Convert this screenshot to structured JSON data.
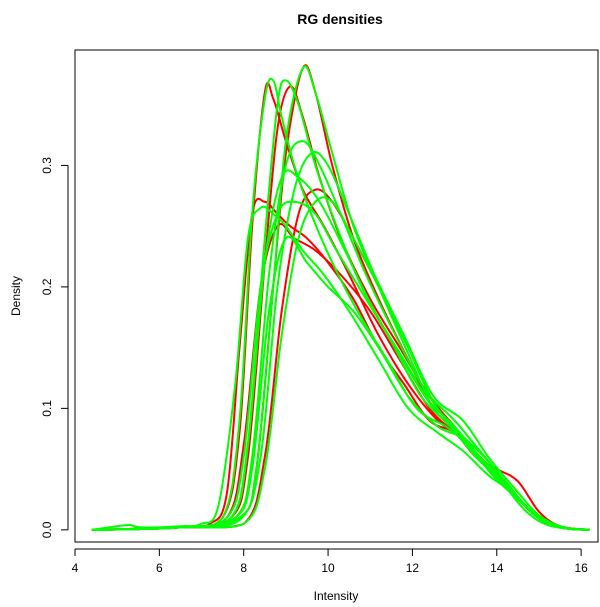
{
  "chart_data": {
    "type": "line",
    "title": "RG densities",
    "xlabel": "Intensity",
    "ylabel": "Density",
    "xlim": [
      4,
      16.4
    ],
    "ylim": [
      -0.01,
      0.395
    ],
    "xticks": [
      4,
      6,
      8,
      10,
      12,
      14,
      16
    ],
    "yticks": [
      0.0,
      0.1,
      0.2,
      0.3
    ],
    "ytick_labels": [
      "0.0",
      "0.1",
      "0.2",
      "0.3"
    ],
    "grid": false,
    "legend": "none",
    "colors": {
      "red_channel": "#ff0000",
      "green_channel": "#00ff00"
    },
    "series": [
      {
        "color": "#ff0000",
        "x": [
          4.4,
          6.5,
          7.2,
          7.6,
          7.9,
          8.2,
          8.5,
          8.8,
          9.1,
          9.5,
          10.0,
          10.6,
          11.2,
          11.8,
          12.4,
          13.0,
          13.5,
          14.0,
          14.5,
          15.0,
          15.5,
          16.2
        ],
        "y": [
          0.0,
          0.002,
          0.005,
          0.03,
          0.15,
          0.26,
          0.27,
          0.26,
          0.25,
          0.24,
          0.22,
          0.19,
          0.15,
          0.12,
          0.09,
          0.08,
          0.06,
          0.05,
          0.04,
          0.015,
          0.003,
          0.0
        ]
      },
      {
        "color": "#ff0000",
        "x": [
          4.4,
          6.5,
          7.5,
          7.9,
          8.2,
          8.5,
          8.7,
          9.0,
          9.4,
          9.9,
          10.5,
          11.2,
          11.9,
          12.6,
          13.2,
          13.8,
          14.4,
          15.0,
          15.6,
          16.2
        ],
        "y": [
          0.0,
          0.002,
          0.01,
          0.08,
          0.25,
          0.36,
          0.355,
          0.32,
          0.28,
          0.25,
          0.21,
          0.16,
          0.12,
          0.09,
          0.075,
          0.05,
          0.03,
          0.01,
          0.002,
          0.0
        ]
      },
      {
        "color": "#ff0000",
        "x": [
          4.4,
          6.5,
          7.7,
          8.1,
          8.5,
          8.8,
          9.1,
          9.4,
          9.8,
          10.3,
          11.0,
          11.7,
          12.4,
          13.0,
          13.6,
          14.2,
          14.8,
          15.4,
          16.2
        ],
        "y": [
          0.0,
          0.002,
          0.01,
          0.06,
          0.22,
          0.33,
          0.365,
          0.34,
          0.29,
          0.24,
          0.19,
          0.15,
          0.11,
          0.085,
          0.06,
          0.04,
          0.015,
          0.003,
          0.0
        ]
      },
      {
        "color": "#ff0000",
        "x": [
          4.4,
          6.5,
          7.9,
          8.3,
          8.7,
          9.0,
          9.4,
          9.7,
          10.1,
          10.6,
          11.2,
          11.9,
          12.5,
          13.1,
          13.7,
          14.3,
          14.9,
          15.5,
          16.2
        ],
        "y": [
          0.0,
          0.002,
          0.01,
          0.05,
          0.2,
          0.31,
          0.38,
          0.36,
          0.3,
          0.24,
          0.19,
          0.14,
          0.1,
          0.08,
          0.055,
          0.035,
          0.012,
          0.002,
          0.0
        ]
      },
      {
        "color": "#ff0000",
        "x": [
          4.4,
          6.5,
          8.0,
          8.5,
          8.9,
          9.3,
          9.7,
          10.1,
          10.6,
          11.2,
          11.9,
          12.5,
          13.1,
          13.7,
          14.3,
          14.9,
          15.5,
          16.2
        ],
        "y": [
          0.0,
          0.002,
          0.005,
          0.06,
          0.18,
          0.26,
          0.28,
          0.27,
          0.24,
          0.2,
          0.15,
          0.105,
          0.08,
          0.055,
          0.035,
          0.012,
          0.002,
          0.0
        ]
      },
      {
        "color": "#ff0000",
        "x": [
          4.4,
          6.5,
          7.6,
          8.0,
          8.4,
          8.8,
          9.2,
          9.7,
          10.3,
          11.0,
          11.7,
          12.4,
          13.0,
          13.6,
          14.2,
          14.8,
          15.4,
          16.2
        ],
        "y": [
          0.0,
          0.002,
          0.01,
          0.07,
          0.2,
          0.25,
          0.24,
          0.23,
          0.21,
          0.18,
          0.14,
          0.1,
          0.08,
          0.06,
          0.04,
          0.015,
          0.003,
          0.0
        ]
      },
      {
        "color": "#00ff00",
        "x": [
          4.4,
          5.0,
          5.3,
          5.6,
          6.5,
          7.0,
          7.4,
          7.8,
          8.1,
          8.4,
          8.7,
          9.0,
          9.4,
          9.9,
          10.5,
          11.2,
          11.9,
          12.6,
          13.2,
          13.8,
          14.4,
          15.0,
          15.6,
          16.2
        ],
        "y": [
          0.0,
          0.003,
          0.004,
          0.002,
          0.003,
          0.005,
          0.02,
          0.12,
          0.24,
          0.265,
          0.26,
          0.25,
          0.23,
          0.21,
          0.18,
          0.14,
          0.1,
          0.08,
          0.065,
          0.045,
          0.03,
          0.01,
          0.002,
          0.0
        ]
      },
      {
        "color": "#00ff00",
        "x": [
          4.4,
          6.5,
          7.5,
          7.9,
          8.2,
          8.5,
          8.7,
          8.9,
          9.2,
          9.6,
          10.1,
          10.7,
          11.4,
          12.1,
          12.8,
          13.3,
          13.9,
          14.5,
          15.1,
          15.7,
          16.2
        ],
        "y": [
          0.0,
          0.002,
          0.01,
          0.09,
          0.26,
          0.355,
          0.37,
          0.34,
          0.3,
          0.26,
          0.22,
          0.18,
          0.14,
          0.1,
          0.085,
          0.07,
          0.045,
          0.025,
          0.008,
          0.001,
          0.0
        ]
      },
      {
        "color": "#00ff00",
        "x": [
          4.4,
          6.5,
          7.7,
          8.1,
          8.5,
          8.8,
          9.0,
          9.3,
          9.7,
          10.2,
          10.8,
          11.5,
          12.2,
          12.9,
          13.5,
          14.1,
          14.7,
          15.3,
          16.2
        ],
        "y": [
          0.0,
          0.002,
          0.01,
          0.07,
          0.24,
          0.35,
          0.37,
          0.35,
          0.3,
          0.25,
          0.2,
          0.155,
          0.11,
          0.085,
          0.06,
          0.04,
          0.015,
          0.003,
          0.0
        ]
      },
      {
        "color": "#00ff00",
        "x": [
          4.4,
          6.5,
          7.9,
          8.3,
          8.7,
          9.0,
          9.4,
          9.7,
          10.1,
          10.6,
          11.2,
          11.9,
          12.5,
          13.1,
          13.7,
          14.3,
          14.9,
          15.5,
          16.2
        ],
        "y": [
          0.0,
          0.002,
          0.01,
          0.05,
          0.2,
          0.32,
          0.38,
          0.36,
          0.31,
          0.25,
          0.2,
          0.145,
          0.1,
          0.08,
          0.055,
          0.035,
          0.012,
          0.002,
          0.0
        ]
      },
      {
        "color": "#00ff00",
        "x": [
          4.4,
          6.5,
          7.8,
          8.2,
          8.6,
          9.0,
          9.4,
          9.8,
          10.3,
          10.9,
          11.6,
          12.3,
          13.0,
          13.6,
          14.2,
          14.8,
          15.4,
          16.2
        ],
        "y": [
          0.0,
          0.002,
          0.01,
          0.06,
          0.21,
          0.3,
          0.32,
          0.3,
          0.26,
          0.21,
          0.16,
          0.115,
          0.09,
          0.065,
          0.04,
          0.015,
          0.003,
          0.0
        ]
      },
      {
        "color": "#00ff00",
        "x": [
          4.4,
          6.5,
          7.7,
          8.1,
          8.5,
          8.9,
          9.3,
          9.8,
          10.4,
          11.1,
          11.8,
          12.5,
          13.1,
          13.7,
          14.3,
          14.9,
          15.5,
          16.2
        ],
        "y": [
          0.0,
          0.002,
          0.01,
          0.07,
          0.22,
          0.29,
          0.29,
          0.27,
          0.23,
          0.18,
          0.14,
          0.1,
          0.08,
          0.06,
          0.035,
          0.012,
          0.002,
          0.0
        ]
      },
      {
        "color": "#00ff00",
        "x": [
          4.4,
          6.5,
          7.6,
          8.0,
          8.4,
          8.8,
          9.2,
          9.7,
          10.2,
          10.9,
          11.6,
          12.3,
          13.0,
          13.6,
          14.2,
          14.8,
          15.4,
          16.2
        ],
        "y": [
          0.0,
          0.002,
          0.01,
          0.06,
          0.2,
          0.26,
          0.27,
          0.26,
          0.23,
          0.19,
          0.15,
          0.11,
          0.085,
          0.06,
          0.04,
          0.015,
          0.003,
          0.0
        ]
      },
      {
        "color": "#00ff00",
        "x": [
          4.4,
          6.5,
          8.0,
          8.5,
          8.9,
          9.3,
          9.7,
          10.1,
          10.6,
          11.2,
          11.9,
          12.5,
          13.1,
          13.7,
          14.3,
          14.9,
          15.5,
          16.2
        ],
        "y": [
          0.0,
          0.002,
          0.005,
          0.05,
          0.16,
          0.24,
          0.27,
          0.27,
          0.24,
          0.2,
          0.15,
          0.105,
          0.08,
          0.055,
          0.035,
          0.012,
          0.002,
          0.0
        ]
      },
      {
        "color": "#00ff00",
        "x": [
          4.4,
          6.5,
          7.8,
          8.2,
          8.6,
          9.0,
          9.5,
          10.0,
          10.6,
          11.2,
          11.9,
          12.6,
          13.2,
          13.8,
          14.4,
          15.0,
          15.6,
          16.2
        ],
        "y": [
          0.0,
          0.002,
          0.01,
          0.05,
          0.18,
          0.24,
          0.22,
          0.2,
          0.18,
          0.15,
          0.11,
          0.085,
          0.075,
          0.05,
          0.03,
          0.01,
          0.002,
          0.0
        ]
      },
      {
        "color": "#00ff00",
        "x": [
          4.4,
          6.5,
          7.9,
          8.4,
          8.8,
          9.2,
          9.6,
          10.0,
          10.5,
          11.1,
          11.8,
          12.5,
          13.2,
          13.8,
          14.4,
          15.0,
          15.6,
          16.2
        ],
        "y": [
          0.0,
          0.002,
          0.008,
          0.06,
          0.2,
          0.28,
          0.31,
          0.3,
          0.26,
          0.21,
          0.16,
          0.11,
          0.09,
          0.06,
          0.035,
          0.012,
          0.002,
          0.0
        ]
      }
    ]
  }
}
